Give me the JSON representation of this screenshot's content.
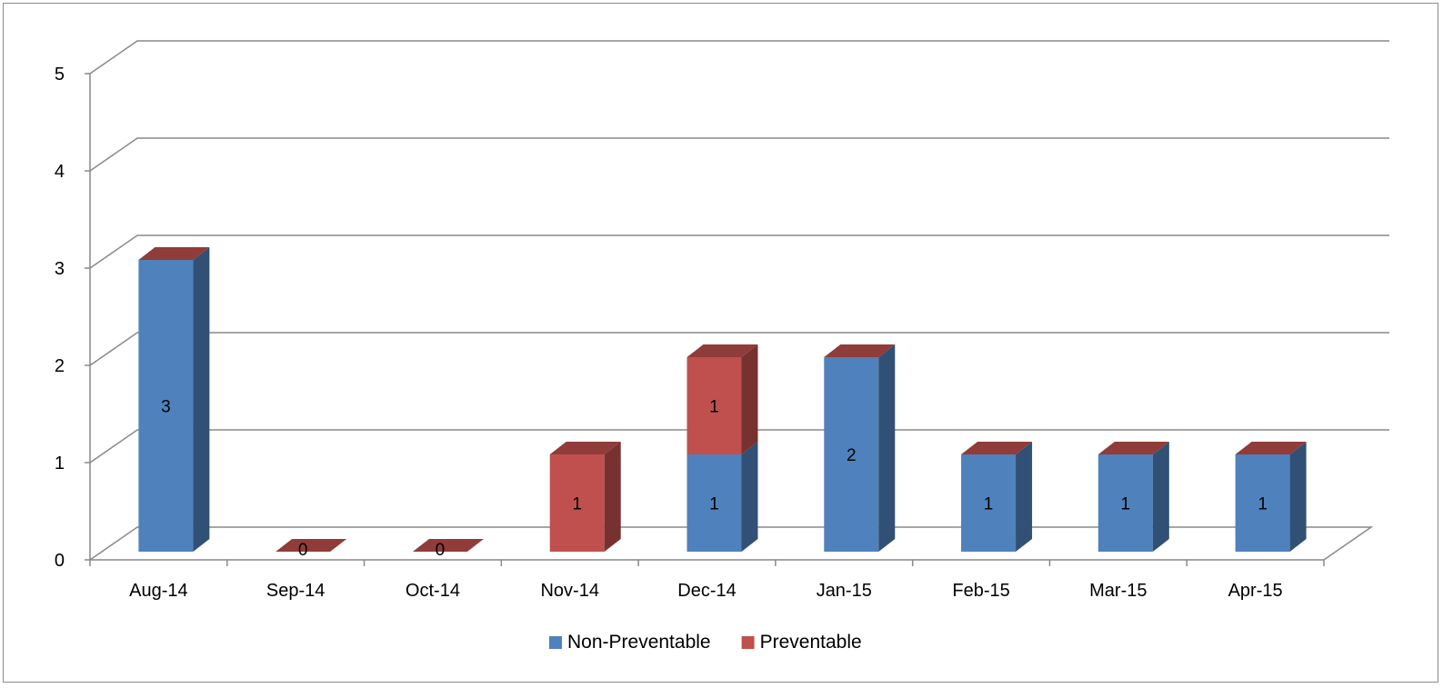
{
  "chart_data": {
    "type": "bar",
    "stacked": true,
    "style": "3d-column",
    "categories": [
      "Aug-14",
      "Sep-14",
      "Oct-14",
      "Nov-14",
      "Dec-14",
      "Jan-15",
      "Feb-15",
      "Mar-15",
      "Apr-15"
    ],
    "series": [
      {
        "name": "Non-Preventable",
        "values": [
          3,
          0,
          0,
          0,
          1,
          2,
          1,
          1,
          1
        ],
        "color": "#4f81bd"
      },
      {
        "name": "Preventable",
        "values": [
          0,
          0,
          0,
          1,
          1,
          0,
          0,
          0,
          0
        ],
        "color": "#c0504d"
      }
    ],
    "data_labels": [
      {
        "category": "Aug-14",
        "series": "Non-Preventable",
        "text": "3"
      },
      {
        "category": "Sep-14",
        "series": "Preventable",
        "text": "0"
      },
      {
        "category": "Oct-14",
        "series": "Preventable",
        "text": "0"
      },
      {
        "category": "Nov-14",
        "series": "Preventable",
        "text": "1"
      },
      {
        "category": "Dec-14",
        "series": "Non-Preventable",
        "text": "1"
      },
      {
        "category": "Dec-14",
        "series": "Preventable",
        "text": "1"
      },
      {
        "category": "Jan-15",
        "series": "Non-Preventable",
        "text": "2"
      },
      {
        "category": "Feb-15",
        "series": "Non-Preventable",
        "text": "1"
      },
      {
        "category": "Mar-15",
        "series": "Non-Preventable",
        "text": "1"
      },
      {
        "category": "Apr-15",
        "series": "Non-Preventable",
        "text": "1"
      }
    ],
    "y_ticks": [
      "0",
      "1",
      "2",
      "3",
      "4",
      "5"
    ],
    "ylim": [
      0,
      5
    ],
    "title": "",
    "xlabel": "",
    "ylabel": "",
    "grid": true,
    "legend": "bottom"
  }
}
